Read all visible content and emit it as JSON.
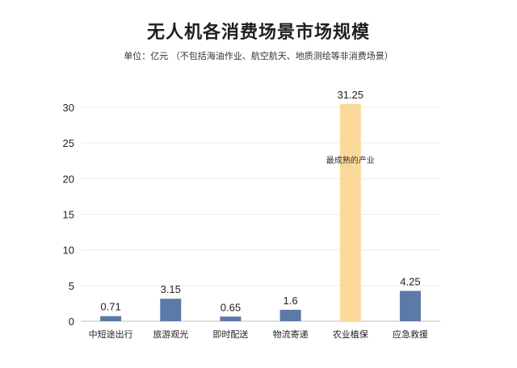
{
  "title": "无人机各消费场景市场规模",
  "subtitle": "单位：亿元 （不包括海油作业、航空航天、地质测绘等非消费场景）",
  "colors": {
    "bar": "#5b7aa8",
    "highlight": "#fbd99b",
    "grid": "#ececec",
    "text": "#222222"
  },
  "chart_data": {
    "type": "bar",
    "categories": [
      "中短途出行",
      "旅游观光",
      "即时配送",
      "物流寄递",
      "农业植保",
      "应急救援"
    ],
    "values": [
      0.71,
      3.15,
      0.65,
      1.6,
      31.25,
      4.25
    ],
    "value_labels": [
      "0.71",
      "3.15",
      "0.65",
      "1.6",
      "31.25",
      "4.25"
    ],
    "highlight_index": 4,
    "annotation": "最成熟的产业",
    "ylim": [
      0,
      30
    ],
    "yticks": [
      0,
      5,
      10,
      15,
      20,
      25,
      30
    ],
    "grid": true,
    "xlabel": "",
    "ylabel": ""
  }
}
